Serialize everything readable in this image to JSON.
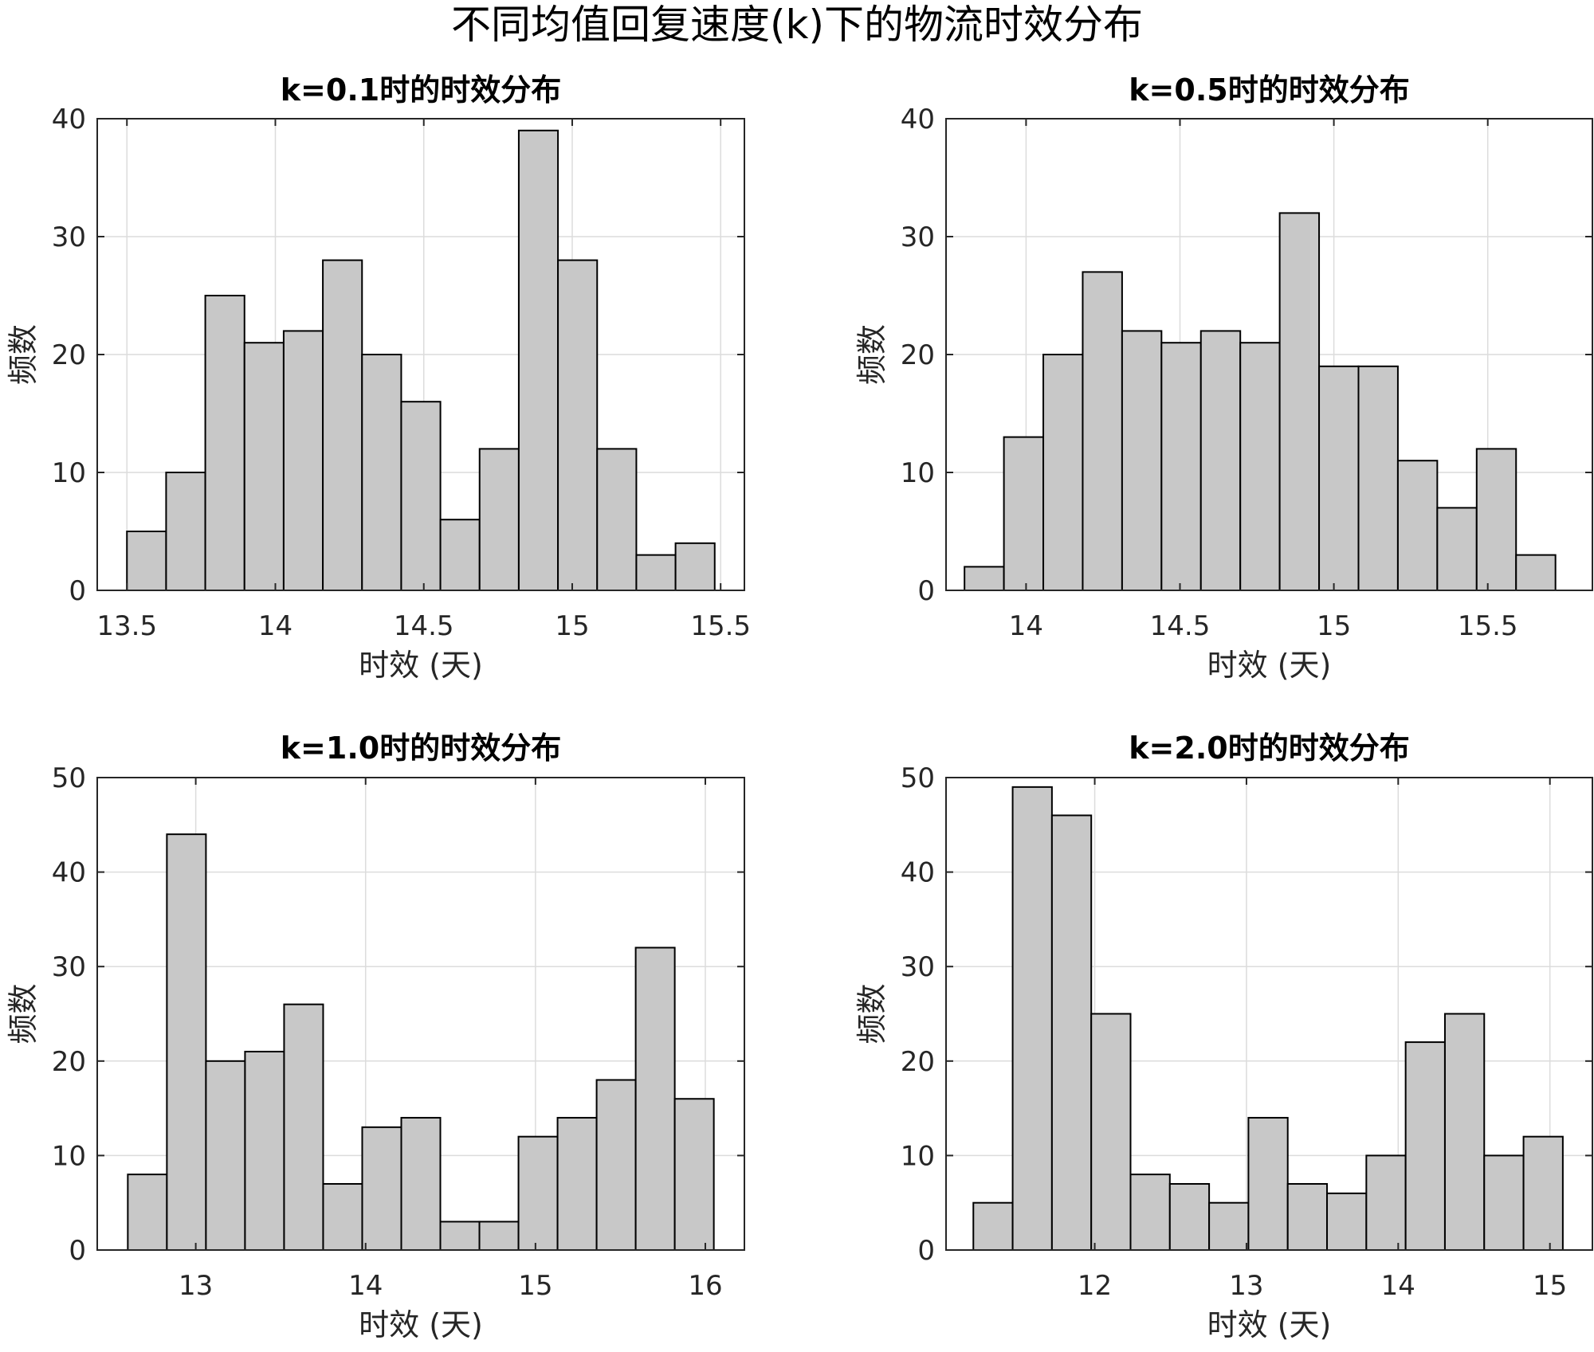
{
  "main_title": "不同均值回复速度(k)下的物流时效分布",
  "chart_data": [
    {
      "type": "bar",
      "title": "k=0.1时的时效分布",
      "xlabel": "时效 (天)",
      "ylabel": "频数",
      "bin_start": 13.5,
      "bin_width": 0.132,
      "values": [
        5,
        10,
        25,
        21,
        22,
        28,
        20,
        16,
        6,
        12,
        39,
        28,
        12,
        3,
        4
      ],
      "xlim": [
        13.4,
        15.58
      ],
      "ylim": [
        0,
        40
      ],
      "xticks": [
        13.5,
        14,
        14.5,
        15,
        15.5
      ],
      "xtick_labels": [
        "13.5",
        "14",
        "14.5",
        "15",
        "15.5"
      ],
      "yticks": [
        0,
        10,
        20,
        30,
        40
      ],
      "ytick_labels": [
        "0",
        "10",
        "20",
        "30",
        "40"
      ],
      "grid": true
    },
    {
      "type": "bar",
      "title": "k=0.5时的时效分布",
      "xlabel": "时效 (天)",
      "ylabel": "频数",
      "bin_start": 13.8,
      "bin_width": 0.128,
      "values": [
        2,
        13,
        20,
        27,
        22,
        21,
        22,
        21,
        32,
        19,
        19,
        11,
        7,
        12,
        3
      ],
      "xlim": [
        13.74,
        15.84
      ],
      "ylim": [
        0,
        40
      ],
      "xticks": [
        14,
        14.5,
        15,
        15.5
      ],
      "xtick_labels": [
        "14",
        "14.5",
        "15",
        "15.5"
      ],
      "yticks": [
        0,
        10,
        20,
        30,
        40
      ],
      "ytick_labels": [
        "0",
        "10",
        "20",
        "30",
        "40"
      ],
      "grid": true
    },
    {
      "type": "bar",
      "title": "k=1.0时的时效分布",
      "xlabel": "时效 (天)",
      "ylabel": "频数",
      "bin_start": 12.6,
      "bin_width": 0.23,
      "values": [
        8,
        44,
        20,
        21,
        26,
        7,
        13,
        14,
        3,
        3,
        12,
        14,
        18,
        32,
        16
      ],
      "xlim": [
        12.42,
        16.23
      ],
      "ylim": [
        0,
        50
      ],
      "xticks": [
        13,
        14,
        15,
        16
      ],
      "xtick_labels": [
        "13",
        "14",
        "15",
        "16"
      ],
      "yticks": [
        0,
        10,
        20,
        30,
        40,
        50
      ],
      "ytick_labels": [
        "0",
        "10",
        "20",
        "30",
        "40",
        "50"
      ],
      "grid": true
    },
    {
      "type": "bar",
      "title": "k=2.0时的时效分布",
      "xlabel": "时效 (天)",
      "ylabel": "频数",
      "bin_start": 11.2,
      "bin_width": 0.259,
      "values": [
        5,
        49,
        46,
        25,
        8,
        7,
        5,
        14,
        7,
        6,
        10,
        22,
        25,
        10,
        12
      ],
      "xlim": [
        11.02,
        15.28
      ],
      "ylim": [
        0,
        50
      ],
      "xticks": [
        12,
        13,
        14,
        15
      ],
      "xtick_labels": [
        "12",
        "13",
        "14",
        "15"
      ],
      "yticks": [
        0,
        10,
        20,
        30,
        40,
        50
      ],
      "ytick_labels": [
        "0",
        "10",
        "20",
        "30",
        "40",
        "50"
      ],
      "grid": true
    }
  ]
}
